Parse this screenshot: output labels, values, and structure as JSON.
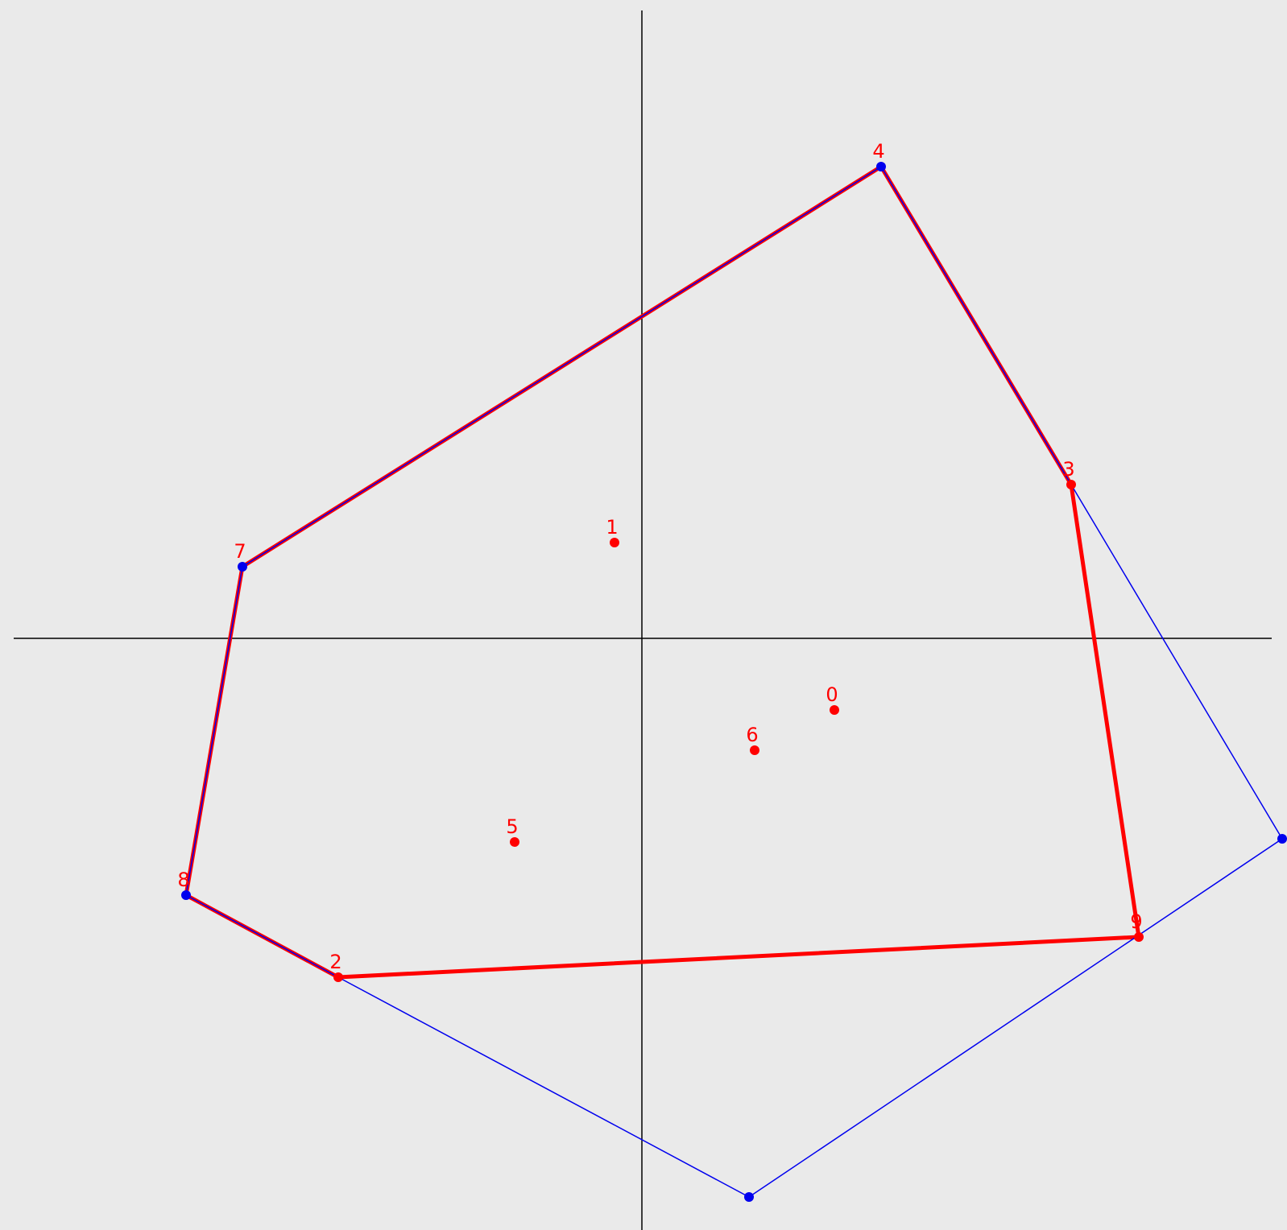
{
  "points": {
    "labels": [
      "0",
      "1",
      "2",
      "3",
      "4",
      "5",
      "6",
      "7",
      "8",
      "9"
    ]
  }
}
